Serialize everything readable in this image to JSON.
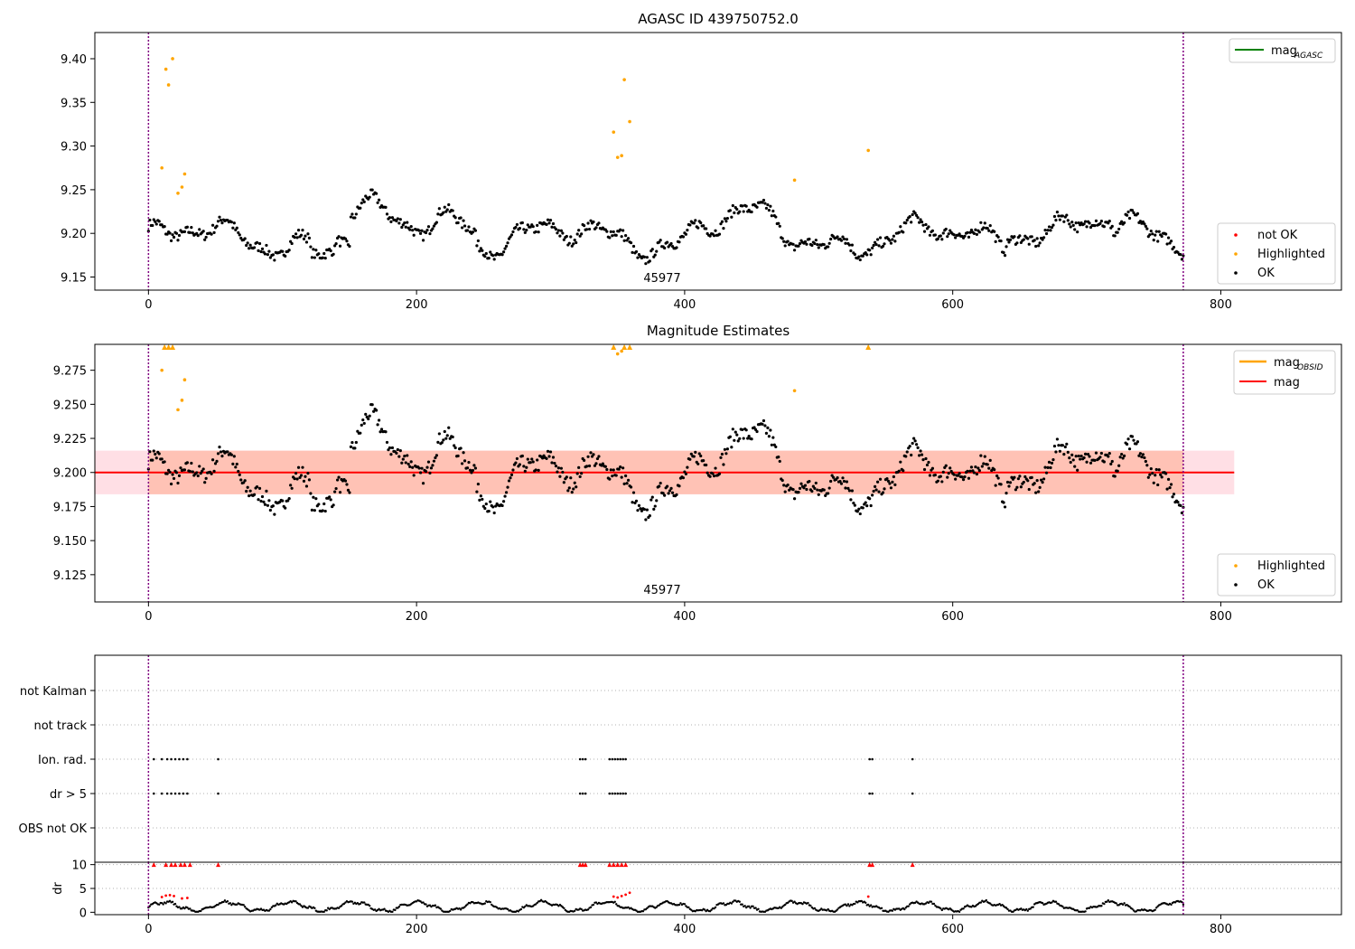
{
  "chart_data": [
    {
      "type": "scatter",
      "title": "AGASC ID 439750752.0",
      "obsid_annotation": "45977",
      "xlim": [
        -40,
        890
      ],
      "ylim": [
        9.135,
        9.43
      ],
      "xticks": [
        "0",
        "200",
        "400",
        "600",
        "800"
      ],
      "yticks": [
        "9.15",
        "9.20",
        "9.25",
        "9.30",
        "9.35",
        "9.40"
      ],
      "vlines_x": [
        0,
        772
      ],
      "legend_lines": [
        {
          "label": "mag",
          "sub": "AGASC",
          "color": "#008000"
        }
      ],
      "legend_points": [
        {
          "label": "not OK",
          "color": "#ff0000"
        },
        {
          "label": "Highlighted",
          "color": "#ffa500"
        },
        {
          "label": "OK",
          "color": "#000000"
        }
      ],
      "highlighted": [
        [
          10,
          9.275
        ],
        [
          13,
          9.388
        ],
        [
          15,
          9.37
        ],
        [
          18,
          9.4
        ],
        [
          22,
          9.246
        ],
        [
          25,
          9.253
        ],
        [
          27,
          9.268
        ],
        [
          347,
          9.316
        ],
        [
          350,
          9.287
        ],
        [
          353,
          9.289
        ],
        [
          355,
          9.376
        ],
        [
          359,
          9.328
        ],
        [
          482,
          9.261
        ],
        [
          537,
          9.295
        ]
      ]
    },
    {
      "type": "scatter",
      "title": "Magnitude Estimates",
      "obsid_annotation": "45977",
      "xlim": [
        -40,
        890
      ],
      "ylim": [
        9.105,
        9.294
      ],
      "xticks": [
        "0",
        "200",
        "400",
        "600",
        "800"
      ],
      "yticks": [
        "9.125",
        "9.150",
        "9.175",
        "9.200",
        "9.225",
        "9.250",
        "9.275"
      ],
      "vlines_x": [
        0,
        772
      ],
      "mag": 9.2,
      "band_outer": [
        9.184,
        9.216
      ],
      "band_inner": [
        9.184,
        9.216
      ],
      "legend_lines": [
        {
          "label": "mag",
          "sub": "OBSID",
          "color": "#ffa500"
        },
        {
          "label": "mag",
          "sub": "",
          "color": "#ff0000"
        }
      ],
      "legend_points": [
        {
          "label": "Highlighted",
          "color": "#ffa500"
        },
        {
          "label": "OK",
          "color": "#000000"
        }
      ],
      "highlighted": [
        [
          10,
          9.275
        ],
        [
          22,
          9.246
        ],
        [
          25,
          9.253
        ],
        [
          27,
          9.268
        ],
        [
          350,
          9.287
        ],
        [
          353,
          9.289
        ],
        [
          482,
          9.26
        ]
      ],
      "clipped_markers_x": [
        12,
        15,
        18,
        347,
        355,
        359,
        537
      ]
    },
    {
      "type": "scatter",
      "title": "",
      "xlim": [
        -40,
        890
      ],
      "category_labels": [
        "not Kalman",
        "not track",
        "Ion. rad.",
        "dr > 5",
        "OBS not OK"
      ],
      "flag_x": [
        4,
        10,
        14,
        17,
        20,
        23,
        26,
        29,
        52,
        322,
        324,
        326,
        344,
        346,
        348,
        350,
        352,
        354,
        356,
        538,
        540,
        570
      ],
      "flag_rows": [
        "Ion. rad.",
        "dr > 5"
      ],
      "vlines_x": [
        0,
        772
      ]
    },
    {
      "type": "scatter",
      "title": "",
      "ylabel": "dr",
      "xlim": [
        -40,
        890
      ],
      "ylim": [
        -0.5,
        10.5
      ],
      "xticks": [
        "0",
        "200",
        "400",
        "600",
        "800"
      ],
      "yticks": [
        "0",
        "5",
        "10"
      ],
      "vlines_x": [
        0,
        772
      ],
      "red_points": [
        [
          10,
          3.2
        ],
        [
          13,
          3.5
        ],
        [
          16,
          3.6
        ],
        [
          19,
          3.4
        ],
        [
          25,
          2.9
        ],
        [
          29,
          3.0
        ],
        [
          347,
          3.3
        ],
        [
          350,
          3.1
        ],
        [
          353,
          3.4
        ],
        [
          356,
          3.7
        ],
        [
          359,
          4.1
        ],
        [
          537,
          3.3
        ]
      ],
      "red_top_x": [
        4,
        13,
        17,
        20,
        24,
        27,
        31,
        52,
        322,
        324,
        326,
        344,
        347,
        350,
        353,
        356,
        538,
        540,
        570
      ]
    }
  ]
}
